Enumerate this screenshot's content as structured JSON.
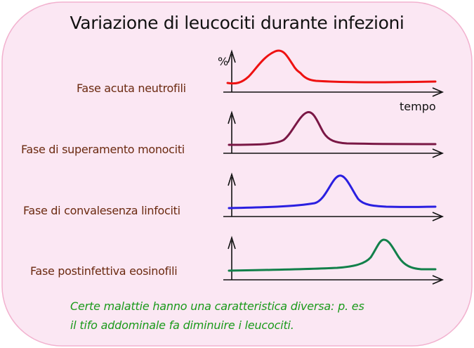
{
  "title": "Variazione di leucociti durante infezioni",
  "y_axis_label": "%",
  "x_axis_label": "tempo",
  "colors": {
    "background": "#fbe7f3",
    "border": "#f2b2cf",
    "label_text": "#6b2a10",
    "note_text": "#1b9a1b"
  },
  "chart_data": {
    "type": "line",
    "series": [
      {
        "name": "Fase acuta neutrofili",
        "color": "#ee1111"
      },
      {
        "name": "Fase di superamento monociti",
        "color": "#7a1745"
      },
      {
        "name": "Fase di convalesenza linfociti",
        "color": "#2a1fe0"
      },
      {
        "name": "Fase postinfettiva eosinofili",
        "color": "#12804a"
      }
    ]
  },
  "note": {
    "line1": "Certe malattie hanno una caratteristica diversa: p. es",
    "line2": "il tifo addominale fa diminuire i leucociti."
  }
}
